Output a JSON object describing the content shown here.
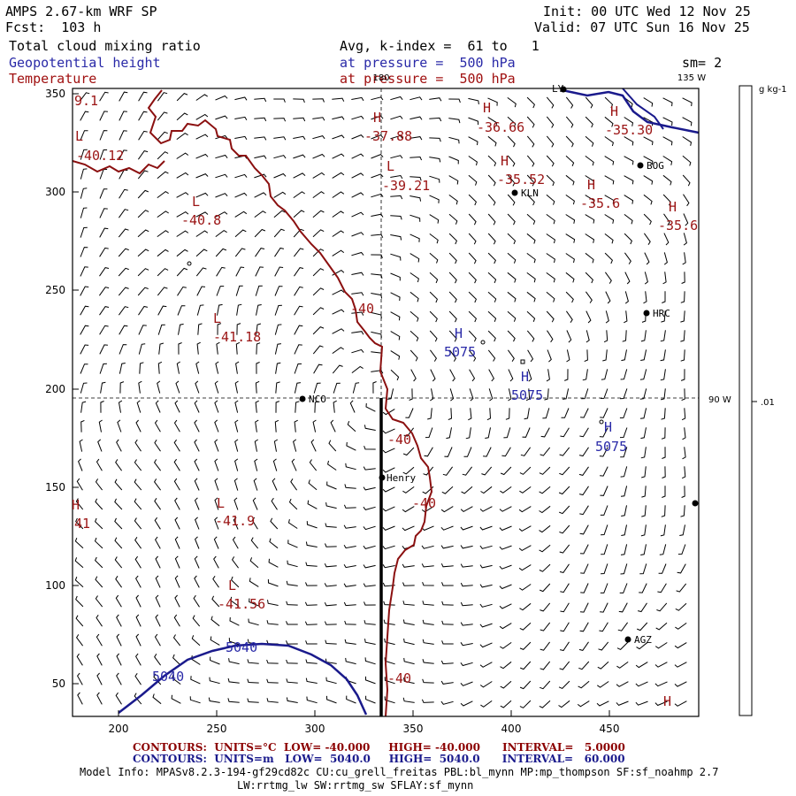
{
  "header": {
    "title": "AMPS 2.67-km WRF SP",
    "fcst": "Fcst:  103 h",
    "init": "Init: 00 UTC Wed 12 Nov 25",
    "valid": "Valid: 07 UTC Sun 16 Nov 25",
    "field1": "Total cloud mixing ratio",
    "field2": "Geopotential height",
    "field3": "Temperature",
    "avg": "Avg, k-index =  61 to   1",
    "press1": "at pressure =  500 hPa",
    "press2": "at pressure =  500 hPa",
    "sm": "sm= 2"
  },
  "map": {
    "colors": {
      "temperature": "#9b1414",
      "height": "#1a1a8c",
      "coast": "#8b0000",
      "barb": "#000000"
    },
    "x_ticks": [
      "200",
      "250",
      "300",
      "350",
      "400",
      "450"
    ],
    "y_ticks": [
      "350",
      "300",
      "250",
      "200",
      "150",
      "100",
      "50"
    ],
    "lon_labels": {
      "top_180": "180",
      "top_135w": "135 W",
      "right_90w": "90 W"
    },
    "colorbar": {
      "unit": "g kg-1",
      "tick": ".01"
    },
    "stations": [
      {
        "name": "LY"
      },
      {
        "name": "BOG"
      },
      {
        "name": "KLN"
      },
      {
        "name": "HRC"
      },
      {
        "name": "NCO"
      },
      {
        "name": "Henry"
      },
      {
        "name": "AGZ"
      }
    ],
    "temp_labels": [
      "-40.12",
      "-40.8",
      "-41.18",
      "-41.9",
      "-41.56",
      "-37.88",
      "-39.21",
      "-36.66",
      "-35.52",
      "-35.6",
      "-35.30",
      "-35.6",
      "-40",
      "-40",
      "-40",
      "-40",
      "41",
      "9.1"
    ],
    "temp_hl": [
      "H",
      "L",
      "L",
      "L",
      "L",
      "L",
      "H",
      "L",
      "H",
      "H",
      "H",
      "H",
      "H",
      "H"
    ],
    "height_labels": [
      "5075",
      "5075",
      "5075",
      "5040",
      "5040"
    ],
    "height_hl": [
      "H",
      "H",
      "H"
    ]
  },
  "footer": {
    "line1": "CONTOURS:  UNITS=°C  LOW= -40.000     HIGH= -40.000      INTERVAL=   5.0000",
    "line2": "CONTOURS:  UNITS=m   LOW=  5040.0     HIGH=  5040.0      INTERVAL=   60.000",
    "model1": "Model Info: MPASv8.2.3-194-gf29cd82c CU:cu_grell_freitas PBL:bl_mynn MP:mp_thompson SF:sf_noahmp 2.7",
    "model2": "LW:rrtmg_lw SW:rrtmg_sw SFLAY:sf_mynn"
  }
}
